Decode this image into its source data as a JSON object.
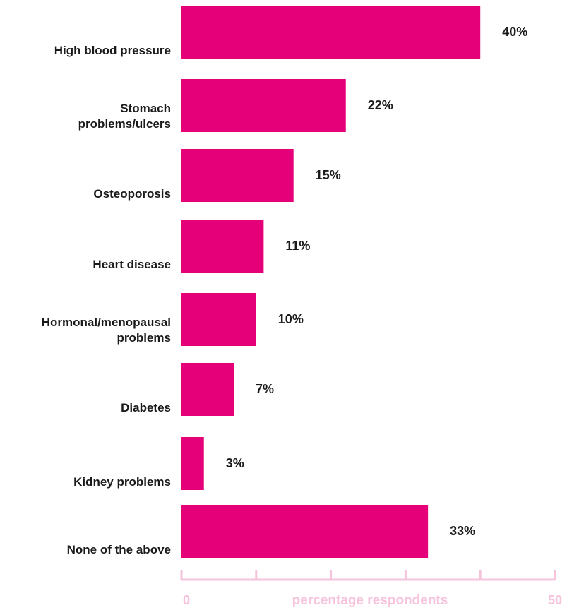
{
  "chart_data": {
    "type": "bar",
    "orientation": "horizontal",
    "categories": [
      [
        "High blood pressure"
      ],
      [
        "Stomach",
        "problems/ulcers"
      ],
      [
        "Osteoporosis"
      ],
      [
        "Heart disease"
      ],
      [
        "Hormonal/menopausal",
        "problems"
      ],
      [
        "Diabetes"
      ],
      [
        "Kidney problems"
      ],
      [
        "None of the above"
      ]
    ],
    "values": [
      40,
      22,
      15,
      11,
      10,
      7,
      3,
      33
    ],
    "value_labels": [
      "40%",
      "22%",
      "15%",
      "11%",
      "10%",
      "7%",
      "3%",
      "33%"
    ],
    "xlabel": "percentage respondents",
    "xlim": [
      0,
      50
    ],
    "x_tick_labels": [
      "0",
      "50"
    ],
    "grid": false,
    "legend": "none",
    "colors": {
      "bar": "#e5007a",
      "axis": "#f6c3dc",
      "axis_text": "#f6c3dc"
    }
  }
}
